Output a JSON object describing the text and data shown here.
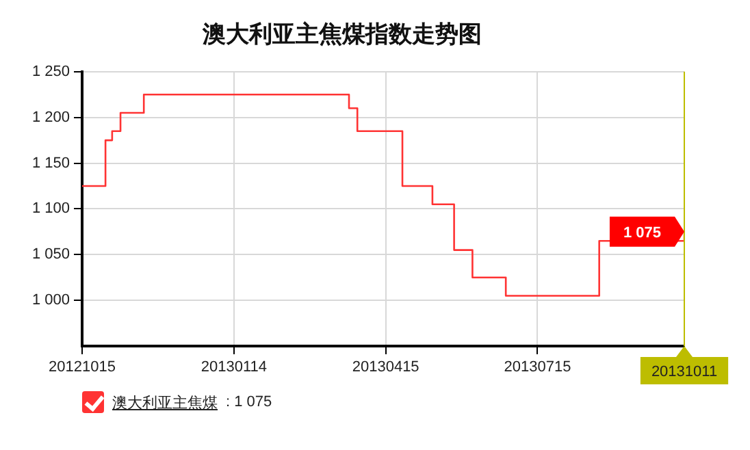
{
  "chart_data": {
    "type": "step",
    "title": "澳大利亚主焦煤指数走势图",
    "x": [
      "2012-10-15",
      "2012-10-29",
      "2012-11-02",
      "2012-11-07",
      "2012-11-21",
      "2013-03-24",
      "2013-03-29",
      "2013-04-25",
      "2013-05-13",
      "2013-05-26",
      "2013-06-06",
      "2013-06-26",
      "2013-08-21",
      "2013-10-11"
    ],
    "series": [
      {
        "name": "澳大利亚主焦煤",
        "color": "#ff3333",
        "values": [
          1125,
          1175,
          1185,
          1205,
          1225,
          1210,
          1185,
          1125,
          1105,
          1055,
          1025,
          1005,
          1065,
          1075
        ]
      }
    ],
    "xlim": [
      "2012-10-15",
      "2013-10-11"
    ],
    "xticks": [
      {
        "value": "2012-10-15",
        "label": "20121015"
      },
      {
        "value": "2013-01-14",
        "label": "20130114"
      },
      {
        "value": "2013-04-15",
        "label": "20130415"
      },
      {
        "value": "2013-07-15",
        "label": "20130715"
      }
    ],
    "ylim": [
      950,
      1250
    ],
    "yticks": [
      {
        "value": 1000,
        "label": "1 000"
      },
      {
        "value": 1050,
        "label": "1 050"
      },
      {
        "value": 1100,
        "label": "1 100"
      },
      {
        "value": 1150,
        "label": "1 150"
      },
      {
        "value": 1200,
        "label": "1 200"
      },
      {
        "value": 1250,
        "label": "1 250"
      }
    ],
    "ref_lines": [
      {
        "axis": "x",
        "value": "2013-10-11",
        "label": "20131011",
        "color": "#bdbd00"
      }
    ],
    "annotations": [
      {
        "text": "1 075",
        "x": "2013-10-11",
        "y": 1075
      },
      ": 1 075"
    ],
    "grid": true,
    "legend": "bottom",
    "marker": "none",
    "line_style": "solid"
  }
}
